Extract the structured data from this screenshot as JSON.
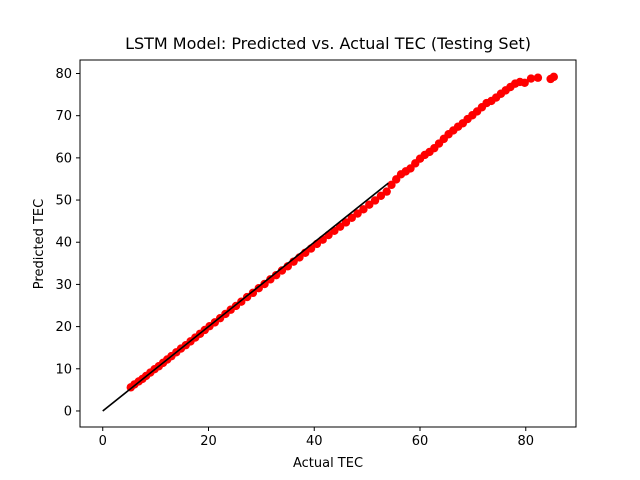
{
  "chart_data": {
    "type": "scatter",
    "title": "LSTM Model: Predicted vs. Actual TEC (Testing Set)",
    "xlabel": "Actual TEC",
    "ylabel": "Predicted TEC",
    "xlim": [
      -4.3,
      89.5
    ],
    "ylim": [
      -3.8,
      83.2
    ],
    "x_ticks": [
      0,
      20,
      40,
      60,
      80
    ],
    "y_ticks": [
      0,
      10,
      20,
      30,
      40,
      50,
      60,
      70,
      80
    ],
    "grid": false,
    "legend": "none",
    "scatter_color": "#ff0000",
    "line_color": "#000000",
    "series": [
      {
        "kind": "scatter",
        "x": [
          5.3,
          6.0,
          6.8,
          7.5,
          8.2,
          9.0,
          9.8,
          10.6,
          11.4,
          12.2,
          13.0,
          13.9,
          14.8,
          15.7,
          16.6,
          17.5,
          18.4,
          19.3,
          20.2,
          21.2,
          22.2,
          23.2,
          24.2,
          25.2,
          26.2,
          27.3,
          28.4,
          29.5,
          30.6,
          31.7,
          32.8,
          33.9,
          35.0,
          36.1,
          37.2,
          38.3,
          39.4,
          40.5,
          41.6,
          42.7,
          43.8,
          44.9,
          46.0,
          47.1,
          48.2,
          49.3,
          50.4,
          51.5,
          52.6,
          53.7,
          54.6,
          55.5,
          56.4,
          57.3,
          58.2,
          59.1,
          60.0,
          60.9,
          61.8,
          62.7,
          63.6,
          64.5,
          65.4,
          66.3,
          67.2,
          68.1,
          69.0,
          69.9,
          70.8,
          71.7,
          72.6,
          73.5,
          74.4,
          75.3,
          76.2,
          77.1,
          78.0,
          78.9,
          79.8,
          81.0,
          82.3,
          84.7,
          85.3
        ],
        "y": [
          5.6,
          6.3,
          7.0,
          7.6,
          8.3,
          9.1,
          9.9,
          10.6,
          11.4,
          12.2,
          13.0,
          13.9,
          14.8,
          15.6,
          16.5,
          17.4,
          18.3,
          19.2,
          20.1,
          21.0,
          22.0,
          23.0,
          24.0,
          24.9,
          25.9,
          27.0,
          28.0,
          29.1,
          30.1,
          31.2,
          32.2,
          33.3,
          34.3,
          35.4,
          36.4,
          37.5,
          38.5,
          39.6,
          40.6,
          41.7,
          42.7,
          43.7,
          44.7,
          45.8,
          46.8,
          47.8,
          48.9,
          49.9,
          51.0,
          52.0,
          53.6,
          54.9,
          56.1,
          56.8,
          57.5,
          58.7,
          59.8,
          60.7,
          61.4,
          62.3,
          63.4,
          64.5,
          65.6,
          66.5,
          67.4,
          68.2,
          69.2,
          70.1,
          71.0,
          72.0,
          73.0,
          73.5,
          74.3,
          75.2,
          76.0,
          76.8,
          77.6,
          78.0,
          77.8,
          78.8,
          79.0,
          78.7,
          79.2
        ]
      },
      {
        "kind": "line",
        "x": [
          0,
          54
        ],
        "y": [
          0,
          54
        ]
      }
    ]
  }
}
